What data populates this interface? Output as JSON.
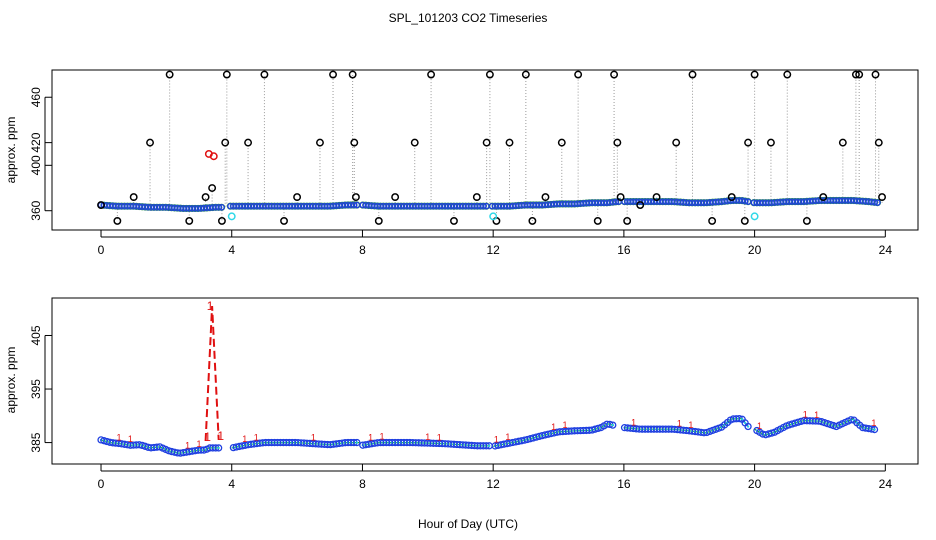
{
  "title": "SPL_101203  CO2 Timeseries",
  "xlabel": "Hour of Day (UTC)",
  "chart_data": [
    {
      "type": "scatter",
      "name": "top-panel",
      "ylabel": "approx. ppm",
      "xlim": [
        -1.5,
        25
      ],
      "ylim": [
        343,
        484
      ],
      "xticks": [
        0,
        4,
        8,
        12,
        16,
        20,
        24
      ],
      "yticks": [
        360,
        400,
        420,
        460
      ],
      "baseline": {
        "name": "co2-baseline",
        "x": [
          0.0,
          0.5,
          1.0,
          1.5,
          2.0,
          2.5,
          3.0,
          3.5,
          3.7,
          3.9,
          4.5,
          5.0,
          5.5,
          6.0,
          6.5,
          7.0,
          7.5,
          7.8,
          8.0,
          8.5,
          9.0,
          9.5,
          10.0,
          10.5,
          11.0,
          11.5,
          11.8,
          12.0,
          12.5,
          13.0,
          13.5,
          14.0,
          14.5,
          15.0,
          15.5,
          15.8,
          16.0,
          16.5,
          17.0,
          17.5,
          18.0,
          18.5,
          19.0,
          19.3,
          19.6,
          19.8,
          20.0,
          20.5,
          21.0,
          21.5,
          22.0,
          22.5,
          23.0,
          23.5,
          23.8
        ],
        "values": [
          365,
          364,
          364,
          363,
          363,
          362,
          362,
          363,
          363,
          364,
          364,
          364,
          364,
          364,
          364,
          364,
          365,
          365,
          365,
          364,
          364,
          364,
          364,
          364,
          364,
          364,
          364,
          364,
          364,
          365,
          365,
          366,
          366,
          367,
          367,
          368,
          368,
          368,
          368,
          368,
          367,
          367,
          368,
          369,
          369,
          368,
          367,
          367,
          368,
          368,
          369,
          369,
          369,
          368,
          367
        ]
      },
      "gaps": [
        [
          3.7,
          3.9
        ],
        [
          7.85,
          7.95
        ],
        [
          11.85,
          11.95
        ],
        [
          15.85,
          15.95
        ],
        [
          19.8,
          19.95
        ]
      ],
      "high_points": {
        "x": [
          0.0,
          0.5,
          1.0,
          1.5,
          2.1,
          2.7,
          3.2,
          3.4,
          3.7,
          3.8,
          3.85,
          4.5,
          5.0,
          5.6,
          6.0,
          6.7,
          7.1,
          7.7,
          7.75,
          7.8,
          8.5,
          9.0,
          9.6,
          10.1,
          10.8,
          11.5,
          11.8,
          11.9,
          12.1,
          12.5,
          13.0,
          13.2,
          13.6,
          14.1,
          14.6,
          15.2,
          15.7,
          15.8,
          15.9,
          16.1,
          16.5,
          17.0,
          17.6,
          18.1,
          18.7,
          19.3,
          19.7,
          19.8,
          20.0,
          20.5,
          21.0,
          21.6,
          22.1,
          22.7,
          23.1,
          23.2,
          23.7,
          23.8,
          23.9
        ],
        "values": [
          365,
          351,
          372,
          420,
          480,
          351,
          372,
          380,
          351,
          420,
          480,
          420,
          480,
          351,
          372,
          420,
          480,
          480,
          420,
          372,
          351,
          372,
          420,
          480,
          351,
          372,
          420,
          480,
          351,
          420,
          480,
          351,
          372,
          420,
          480,
          351,
          480,
          420,
          372,
          351,
          365,
          372,
          420,
          480,
          351,
          372,
          351,
          420,
          480,
          420,
          480,
          351,
          372,
          420,
          480,
          480,
          480,
          420,
          372
        ]
      },
      "red_points": {
        "x": [
          3.3,
          3.45
        ],
        "values": [
          410,
          408
        ]
      },
      "cyan_points": {
        "x": [
          4.0,
          12.0,
          20.0
        ],
        "values": [
          355,
          355,
          355
        ]
      }
    },
    {
      "type": "line",
      "name": "bottom-panel",
      "ylabel": "approx. ppm",
      "xlim": [
        -1.5,
        25
      ],
      "ylim": [
        381,
        412
      ],
      "xticks": [
        0,
        4,
        8,
        12,
        16,
        20,
        24
      ],
      "yticks": [
        385,
        395,
        405
      ],
      "series": {
        "x": [
          0.0,
          0.3,
          0.6,
          0.9,
          1.2,
          1.5,
          1.8,
          2.1,
          2.4,
          2.7,
          3.0,
          3.2,
          3.3,
          3.5,
          3.6,
          4.0,
          4.5,
          5.0,
          5.5,
          6.0,
          6.5,
          7.0,
          7.5,
          7.9,
          8.0,
          8.5,
          9.0,
          9.5,
          10.0,
          10.5,
          11.0,
          11.5,
          11.9,
          12.0,
          12.5,
          13.0,
          13.5,
          14.0,
          14.5,
          15.0,
          15.3,
          15.5,
          15.7,
          16.0,
          16.5,
          17.0,
          17.5,
          18.0,
          18.5,
          19.0,
          19.3,
          19.6,
          19.8,
          20.0,
          20.3,
          20.6,
          21.0,
          21.5,
          22.0,
          22.5,
          23.0,
          23.3,
          23.7
        ],
        "values": [
          385.5,
          385.0,
          384.8,
          384.5,
          384.6,
          384.0,
          384.2,
          383.4,
          383.0,
          383.3,
          383.6,
          383.6,
          384.0,
          384.0,
          384.0,
          384.0,
          384.6,
          385.0,
          385.0,
          385.0,
          384.8,
          384.6,
          385.0,
          385.0,
          384.5,
          385.0,
          385.0,
          385.0,
          384.9,
          384.8,
          384.6,
          384.4,
          384.4,
          384.3,
          384.9,
          385.5,
          386.3,
          387.0,
          387.2,
          387.3,
          387.8,
          388.5,
          388.2,
          387.8,
          387.5,
          387.5,
          387.5,
          387.2,
          386.8,
          387.9,
          389.4,
          389.5,
          388.0,
          387.5,
          386.4,
          386.9,
          388.2,
          389.1,
          389.0,
          388.0,
          389.4,
          387.8,
          387.4
        ]
      },
      "gaps": [
        [
          3.6,
          4.0
        ],
        [
          7.9,
          8.0
        ],
        [
          11.9,
          12.0
        ],
        [
          15.7,
          16.0
        ],
        [
          19.8,
          20.0
        ]
      ],
      "spike": {
        "x": [
          3.2,
          3.4,
          3.6
        ],
        "values": [
          385.3,
          410.5,
          385.5
        ],
        "labels": [
          "1",
          "1",
          "1"
        ]
      }
    }
  ]
}
